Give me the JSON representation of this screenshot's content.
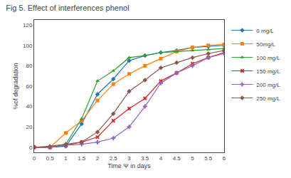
{
  "chart_data": {
    "type": "line",
    "title": "Fig 5. Effect of interferences phenol",
    "xlabel": "Time Ψ in days",
    "ylabel": "%of degradation",
    "xlim": [
      0,
      6
    ],
    "ylim": [
      -5,
      125
    ],
    "xticks": [
      0,
      0.5,
      1,
      1.5,
      2,
      2.5,
      3,
      3.5,
      4,
      4.5,
      5,
      5.5,
      6
    ],
    "yticks": [
      0,
      20,
      40,
      60,
      80,
      100,
      120
    ],
    "grid": false,
    "legend": "outside upper right",
    "x": [
      0,
      0.5,
      1,
      1.5,
      2,
      2.5,
      3,
      3.5,
      4,
      4.5,
      5,
      5.5,
      6
    ],
    "series": [
      {
        "name": "0 mg/L",
        "marker": "diamond",
        "values": [
          0,
          0,
          1,
          23,
          52,
          67,
          85,
          90,
          93,
          95,
          98,
          99,
          100
        ]
      },
      {
        "name": "50mg/L",
        "marker": "square",
        "values": [
          0,
          0,
          14,
          26,
          46,
          62,
          72,
          80,
          87,
          94,
          98,
          100,
          101
        ]
      },
      {
        "name": "100 mg/L",
        "marker": "triangle-up",
        "values": [
          0,
          0,
          3,
          28,
          65,
          75,
          88,
          90,
          93,
          94,
          95,
          96,
          97
        ]
      },
      {
        "name": "150 mg/L",
        "marker": "x",
        "values": [
          0,
          0,
          2,
          5,
          10,
          26,
          38,
          48,
          65,
          73,
          82,
          88,
          93
        ]
      },
      {
        "name": "200 mg/L",
        "marker": "cross",
        "values": [
          0,
          0,
          2,
          3,
          5,
          9,
          20,
          40,
          63,
          73,
          80,
          88,
          92
        ]
      },
      {
        "name": "250 mg/L",
        "marker": "diamond",
        "values": [
          0,
          1,
          3,
          5,
          15,
          33,
          55,
          66,
          78,
          83,
          88,
          92,
          95
        ]
      }
    ]
  }
}
